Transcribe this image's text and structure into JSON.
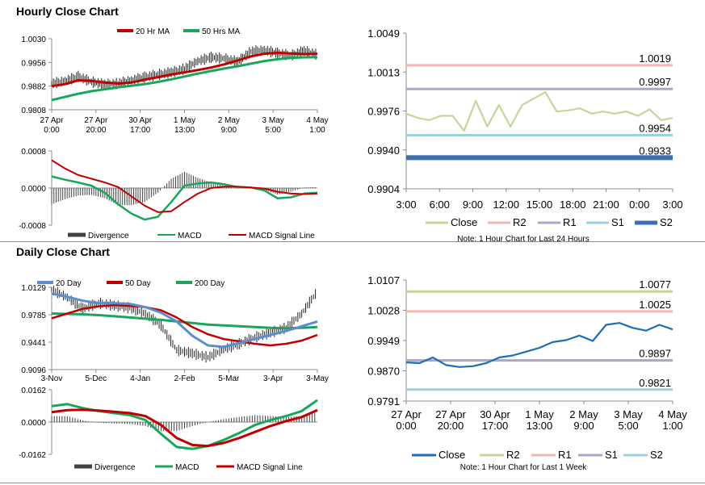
{
  "titles": {
    "hourly": "Hourly Close Chart",
    "daily": "Daily Close Chart"
  },
  "colors": {
    "ma_red": "#c00000",
    "ma_green": "#1aa65a",
    "price": "#222222",
    "ma_blue": "#5b8ed1",
    "close_light": "#c3d69b",
    "r2_pink": "#f4b6b0",
    "r1_purple": "#b3a2c7",
    "s1_cyan": "#9ad3df",
    "s2_blue": "#3e6fb0",
    "close_blue": "#1e6db5",
    "hist": "#404040"
  },
  "chart_data": [
    {
      "id": "hourly_price",
      "type": "line",
      "x_labels": [
        [
          "27 Apr",
          "0:00"
        ],
        [
          "27 Apr",
          "20:00"
        ],
        [
          "30 Apr",
          "17:00"
        ],
        [
          "1 May",
          "13:00"
        ],
        [
          "2 May",
          "9:00"
        ],
        [
          "3 May",
          "5:00"
        ],
        [
          "4 May",
          "1:00"
        ]
      ],
      "y_ticks": [
        "1.0030",
        "0.9956",
        "0.9882",
        "0.9808"
      ],
      "ylim": [
        0.9808,
        1.003
      ],
      "legend": [
        "20 Hr MA",
        "50 Hrs MA"
      ],
      "series": [
        {
          "name": "20 Hr MA",
          "color": "#c00000",
          "values": [
            0.9882,
            0.9888,
            0.99,
            0.9898,
            0.9893,
            0.989,
            0.9893,
            0.9902,
            0.991,
            0.9918,
            0.9925,
            0.9932,
            0.994,
            0.995,
            0.9962,
            0.9975,
            0.9983,
            0.9986,
            0.9984,
            0.9982,
            0.9983
          ]
        },
        {
          "name": "50 Hrs MA",
          "color": "#1aa65a",
          "values": [
            0.9838,
            0.9848,
            0.9858,
            0.9866,
            0.9872,
            0.9878,
            0.9883,
            0.9888,
            0.9895,
            0.9903,
            0.9912,
            0.9921,
            0.9929,
            0.9937,
            0.9944,
            0.9952,
            0.996,
            0.9966,
            0.997,
            0.9972,
            0.9972
          ]
        },
        {
          "name": "Close",
          "color": "#222222",
          "values": [
            0.989,
            0.9898,
            0.9912,
            0.9895,
            0.9887,
            0.989,
            0.99,
            0.991,
            0.9918,
            0.9925,
            0.9936,
            0.996,
            0.9972,
            0.9968,
            0.9958,
            0.999,
            0.9995,
            0.9985,
            0.9978,
            0.9992,
            0.998
          ]
        }
      ]
    },
    {
      "id": "hourly_macd",
      "type": "line",
      "y_ticks": [
        "0.0008",
        "0.0000",
        "-0.0008"
      ],
      "ylim": [
        -0.0008,
        0.0008
      ],
      "legend": [
        "Divergence",
        "MACD",
        "MACD Signal Line"
      ],
      "series": [
        {
          "name": "MACD",
          "color": "#1aa65a",
          "values": [
            0.00025,
            0.00018,
            0.00012,
            5e-05,
            -0.0001,
            -0.00035,
            -0.00055,
            -0.00068,
            -0.00062,
            -0.0003,
            5e-05,
            0.0001,
            0.00012,
            8e-05,
            2e-05,
            1e-05,
            -5e-05,
            -0.00022,
            -0.0002,
            -0.00012,
            -0.0001
          ]
        },
        {
          "name": "MACD Signal Line",
          "color": "#c00000",
          "values": [
            0.0006,
            0.00042,
            0.00028,
            0.0002,
            0.00012,
            2e-05,
            -0.00018,
            -0.00038,
            -0.00052,
            -0.0005,
            -0.0003,
            -0.00012,
            0.0,
            3e-05,
            3e-05,
            1e-05,
            -1e-05,
            -8e-05,
            -0.00012,
            -0.00013,
            -0.00012
          ]
        },
        {
          "name": "Divergence",
          "color": "#404040",
          "values": [
            -0.00035,
            -0.00024,
            -0.00016,
            -0.00015,
            -0.00022,
            -0.00037,
            -0.00037,
            -0.0003,
            -0.0001,
            0.0002,
            0.00035,
            0.00022,
            0.00012,
            5e-05,
            -1e-05,
            0.0,
            -4e-05,
            -0.00014,
            -8e-05,
            1e-05,
            2e-05
          ]
        }
      ]
    },
    {
      "id": "hourly_levels",
      "type": "line",
      "x_labels": [
        "3:00",
        "6:00",
        "9:00",
        "12:00",
        "15:00",
        "18:00",
        "21:00",
        "0:00",
        "3:00"
      ],
      "y_ticks": [
        "1.0049",
        "1.0013",
        "0.9976",
        "0.9940",
        "0.9904"
      ],
      "ylim": [
        0.9904,
        1.0049
      ],
      "legend": [
        "Close",
        "R2",
        "R1",
        "S1",
        "S2"
      ],
      "note": "Note: 1 Hour Chart for Last 24 Hours",
      "levels": [
        {
          "name": "R2",
          "value": 1.0019,
          "label": "1.0019",
          "color": "#f4b6b0"
        },
        {
          "name": "R1",
          "value": 0.9997,
          "label": "0.9997",
          "color": "#b3a2c7"
        },
        {
          "name": "S1",
          "value": 0.9954,
          "label": "0.9954",
          "color": "#9ad3df"
        },
        {
          "name": "S2",
          "value": 0.9933,
          "label": "0.9933",
          "color": "#3e6fb0"
        }
      ],
      "series": [
        {
          "name": "Close",
          "color": "#c3d69b",
          "values": [
            0.9974,
            0.997,
            0.9968,
            0.9972,
            0.9972,
            0.9958,
            0.9986,
            0.9962,
            0.9982,
            0.9962,
            0.9982,
            0.9988,
            0.9994,
            0.9976,
            0.9977,
            0.9979,
            0.9974,
            0.9976,
            0.9974,
            0.9976,
            0.9972,
            0.9978,
            0.9968,
            0.997
          ]
        }
      ]
    },
    {
      "id": "daily_price",
      "type": "line",
      "x_labels": [
        "3-Nov",
        "5-Dec",
        "4-Jan",
        "2-Feb",
        "5-Mar",
        "3-Apr",
        "3-May"
      ],
      "y_ticks": [
        "1.0129",
        "0.9785",
        "0.9441",
        "0.9096"
      ],
      "ylim": [
        0.9096,
        1.0129
      ],
      "legend": [
        "20 Day",
        "50 Day",
        "200 Day"
      ],
      "series": [
        {
          "name": "20 Day",
          "color": "#5b8ed1",
          "values": [
            1.005,
            1.001,
            0.996,
            0.993,
            0.993,
            0.992,
            0.988,
            0.981,
            0.97,
            0.952,
            0.94,
            0.938,
            0.943,
            0.948,
            0.953,
            0.958,
            0.964,
            0.97
          ]
        },
        {
          "name": "50 Day",
          "color": "#c00000",
          "values": [
            0.974,
            0.98,
            0.986,
            0.989,
            0.9905,
            0.9895,
            0.988,
            0.984,
            0.975,
            0.963,
            0.954,
            0.948,
            0.945,
            0.942,
            0.94,
            0.942,
            0.946,
            0.953
          ]
        },
        {
          "name": "200 Day",
          "color": "#1aa65a",
          "values": [
            0.98,
            0.9795,
            0.979,
            0.978,
            0.9765,
            0.975,
            0.9735,
            0.972,
            0.97,
            0.968,
            0.966,
            0.965,
            0.964,
            0.963,
            0.962,
            0.9615,
            0.962,
            0.963
          ]
        },
        {
          "name": "Close",
          "color": "#222222",
          "values": [
            1.01,
            1.0,
            0.986,
            0.993,
            0.99,
            0.987,
            0.98,
            0.965,
            0.934,
            0.93,
            0.925,
            0.935,
            0.942,
            0.95,
            0.956,
            0.962,
            0.98,
            1.008
          ]
        }
      ]
    },
    {
      "id": "daily_macd",
      "type": "line",
      "y_ticks": [
        "0.0162",
        "0.0000",
        "-0.0162"
      ],
      "ylim": [
        -0.0162,
        0.0162
      ],
      "legend": [
        "Divergence",
        "MACD",
        "MACD Signal Line"
      ],
      "series": [
        {
          "name": "MACD",
          "color": "#1aa65a",
          "values": [
            0.008,
            0.009,
            0.007,
            0.0055,
            0.0045,
            0.0035,
            0.001,
            -0.006,
            -0.0125,
            -0.0135,
            -0.012,
            -0.009,
            -0.0055,
            -0.0015,
            0.001,
            0.003,
            0.0055,
            0.011
          ]
        },
        {
          "name": "MACD Signal Line",
          "color": "#c00000",
          "values": [
            0.005,
            0.006,
            0.0062,
            0.0058,
            0.0052,
            0.0045,
            0.003,
            -0.0015,
            -0.008,
            -0.0115,
            -0.012,
            -0.0105,
            -0.008,
            -0.005,
            -0.002,
            0.0005,
            0.0025,
            0.006
          ]
        },
        {
          "name": "Divergence",
          "color": "#404040",
          "values": [
            0.003,
            0.003,
            0.0008,
            -0.0003,
            -0.0007,
            -0.001,
            -0.002,
            -0.0045,
            -0.0045,
            -0.002,
            0.0,
            0.0015,
            0.0025,
            0.0035,
            0.003,
            0.0025,
            0.003,
            0.005
          ]
        }
      ]
    },
    {
      "id": "daily_levels",
      "type": "line",
      "x_labels": [
        [
          "27 Apr",
          "0:00"
        ],
        [
          "27 Apr",
          "20:00"
        ],
        [
          "30 Apr",
          "17:00"
        ],
        [
          "1 May",
          "13:00"
        ],
        [
          "2 May",
          "9:00"
        ],
        [
          "3 May",
          "5:00"
        ],
        [
          "4 May",
          "1:00"
        ]
      ],
      "y_ticks": [
        "1.0107",
        "1.0028",
        "0.9949",
        "0.9870",
        "0.9791"
      ],
      "ylim": [
        0.9791,
        1.0107
      ],
      "legend": [
        "Close",
        "R2",
        "R1",
        "S1",
        "S2"
      ],
      "note": "Note: 1 Hour Chart for Last 1 Week",
      "levels": [
        {
          "name": "R2",
          "value": 1.0077,
          "label": "1.0077",
          "color": "#c3d69b"
        },
        {
          "name": "R1",
          "value": 1.0025,
          "label": "1.0025",
          "color": "#f4b6b0"
        },
        {
          "name": "S1",
          "value": 0.9897,
          "label": "0.9897",
          "color": "#b3a2c7"
        },
        {
          "name": "S2",
          "value": 0.9821,
          "label": "0.9821",
          "color": "#9ad3df"
        }
      ],
      "series": [
        {
          "name": "Close",
          "color": "#1e6db5",
          "values": [
            0.9892,
            0.989,
            0.9905,
            0.9885,
            0.988,
            0.9882,
            0.989,
            0.9905,
            0.991,
            0.992,
            0.993,
            0.9945,
            0.995,
            0.9962,
            0.9948,
            0.999,
            0.9995,
            0.9982,
            0.9975,
            0.999,
            0.9978
          ]
        }
      ]
    }
  ]
}
